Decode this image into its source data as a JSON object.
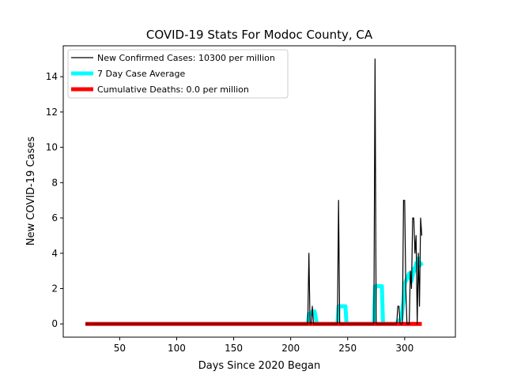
{
  "chart_data": {
    "type": "line",
    "title": "COVID-19 Stats For Modoc County, CA",
    "xlabel": "Days Since 2020 Began",
    "ylabel": "New COVID-19 Cases",
    "xlim": [
      0.5,
      344.5
    ],
    "ylim": [
      -0.75,
      15.75
    ],
    "x_ticks": [
      50,
      100,
      150,
      200,
      250,
      300
    ],
    "x_tick_labels": [
      "50",
      "100",
      "150",
      "200",
      "250",
      "300"
    ],
    "y_ticks": [
      0,
      2,
      4,
      6,
      8,
      10,
      12,
      14
    ],
    "y_tick_labels": [
      "0",
      "2",
      "4",
      "6",
      "8",
      "10",
      "12",
      "14"
    ],
    "grid": false,
    "legend_position": "top-left",
    "series": [
      {
        "name": "New Confirmed Cases: 10300 per million",
        "color": "#000000",
        "style": "thin-line",
        "points": [
          [
            20,
            0
          ],
          [
            215,
            0
          ],
          [
            216,
            4
          ],
          [
            217,
            0
          ],
          [
            218,
            0
          ],
          [
            219,
            1
          ],
          [
            220,
            0
          ],
          [
            241,
            0
          ],
          [
            242,
            7
          ],
          [
            243,
            0
          ],
          [
            273,
            0
          ],
          [
            274,
            15
          ],
          [
            275,
            0
          ],
          [
            293,
            0
          ],
          [
            294,
            1
          ],
          [
            295,
            1
          ],
          [
            296,
            0
          ],
          [
            298,
            0
          ],
          [
            299,
            7
          ],
          [
            300,
            7
          ],
          [
            301,
            2
          ],
          [
            302,
            0
          ],
          [
            304,
            0
          ],
          [
            305,
            3
          ],
          [
            306,
            2
          ],
          [
            307,
            6
          ],
          [
            308,
            6
          ],
          [
            309,
            4
          ],
          [
            310,
            5
          ],
          [
            311,
            0
          ],
          [
            312,
            4
          ],
          [
            313,
            1
          ],
          [
            314,
            6
          ],
          [
            315,
            5
          ]
        ]
      },
      {
        "name": "7 Day Case Average",
        "color": "#00ffff",
        "style": "thick-line",
        "points": [
          [
            20,
            0
          ],
          [
            215,
            0
          ],
          [
            216,
            0.57
          ],
          [
            218,
            0.57
          ],
          [
            219,
            0.71
          ],
          [
            221,
            0.71
          ],
          [
            223,
            0
          ],
          [
            241,
            0
          ],
          [
            242,
            1
          ],
          [
            248,
            1
          ],
          [
            249,
            0
          ],
          [
            273,
            0
          ],
          [
            274,
            2.14
          ],
          [
            280,
            2.14
          ],
          [
            281,
            0
          ],
          [
            293,
            0
          ],
          [
            294,
            0.14
          ],
          [
            297,
            0.29
          ],
          [
            299,
            1.29
          ],
          [
            300,
            2.29
          ],
          [
            302,
            2.57
          ],
          [
            304,
            2.86
          ],
          [
            306,
            2.43
          ],
          [
            307,
            2.71
          ],
          [
            308,
            3.14
          ],
          [
            309,
            3.0
          ],
          [
            310,
            3.43
          ],
          [
            311,
            3.43
          ],
          [
            312,
            3.71
          ],
          [
            313,
            3.29
          ],
          [
            314,
            3.43
          ],
          [
            315,
            3.29
          ]
        ]
      },
      {
        "name": "Cumulative Deaths: 0.0 per million",
        "color": "#ff0000",
        "style": "thick-line",
        "points": [
          [
            20,
            0
          ],
          [
            315,
            0
          ]
        ]
      }
    ]
  }
}
